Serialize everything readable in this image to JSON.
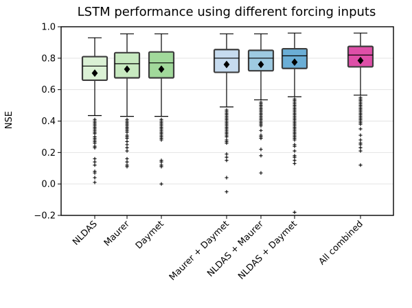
{
  "chart_data": {
    "type": "box",
    "title": "LSTM performance using different forcing inputs",
    "xlabel": "",
    "ylabel": "NSE",
    "ylim": [
      -0.2,
      1.0
    ],
    "yticks": [
      -0.2,
      0.0,
      0.2,
      0.4,
      0.6,
      0.8,
      1.0
    ],
    "ytick_labels": [
      "−0.2",
      "0.0",
      "0.2",
      "0.4",
      "0.6",
      "0.8",
      "1.0"
    ],
    "grid": "horizontal",
    "mean_marker": "diamond",
    "outlier_marker": "+",
    "boxes": [
      {
        "label": "NLDAS",
        "color": "#dbf1d5",
        "q1": 0.66,
        "median": 0.75,
        "q3": 0.81,
        "whisker_low": 0.435,
        "whisker_high": 0.93,
        "mean": 0.705,
        "outliers": [
          0.41,
          0.4,
          0.39,
          0.38,
          0.37,
          0.36,
          0.35,
          0.34,
          0.33,
          0.32,
          0.3,
          0.29,
          0.28,
          0.27,
          0.26,
          0.24,
          0.23,
          0.16,
          0.14,
          0.12,
          0.08,
          0.07,
          0.04,
          0.01
        ]
      },
      {
        "label": "Maurer",
        "color": "#c7e9c0",
        "q1": 0.675,
        "median": 0.765,
        "q3": 0.835,
        "whisker_low": 0.43,
        "whisker_high": 0.955,
        "mean": 0.73,
        "outliers": [
          0.41,
          0.4,
          0.39,
          0.38,
          0.37,
          0.36,
          0.35,
          0.34,
          0.33,
          0.31,
          0.3,
          0.29,
          0.27,
          0.25,
          0.23,
          0.21,
          0.16,
          0.14,
          0.12,
          0.11
        ]
      },
      {
        "label": "Daymet",
        "color": "#a1d99b",
        "q1": 0.675,
        "median": 0.77,
        "q3": 0.84,
        "whisker_low": 0.43,
        "whisker_high": 0.955,
        "mean": 0.73,
        "outliers": [
          0.41,
          0.4,
          0.39,
          0.38,
          0.37,
          0.36,
          0.35,
          0.34,
          0.33,
          0.32,
          0.31,
          0.3,
          0.29,
          0.28,
          0.15,
          0.14,
          0.12,
          0.11,
          0.0
        ]
      },
      {
        "label": "Maurer + Daymet",
        "color": "#c6dbef",
        "q1": 0.71,
        "median": 0.8,
        "q3": 0.855,
        "whisker_low": 0.49,
        "whisker_high": 0.955,
        "mean": 0.76,
        "outliers": [
          0.47,
          0.46,
          0.45,
          0.44,
          0.43,
          0.42,
          0.41,
          0.4,
          0.39,
          0.38,
          0.37,
          0.36,
          0.35,
          0.34,
          0.33,
          0.32,
          0.31,
          0.3,
          0.28,
          0.27,
          0.26,
          0.19,
          0.17,
          0.15,
          0.04,
          -0.05
        ]
      },
      {
        "label": "NLDAS + Maurer",
        "color": "#9ecae1",
        "q1": 0.72,
        "median": 0.8,
        "q3": 0.85,
        "whisker_low": 0.535,
        "whisker_high": 0.955,
        "mean": 0.76,
        "outliers": [
          0.52,
          0.51,
          0.5,
          0.49,
          0.48,
          0.47,
          0.46,
          0.45,
          0.44,
          0.43,
          0.42,
          0.41,
          0.4,
          0.39,
          0.38,
          0.37,
          0.34,
          0.31,
          0.3,
          0.29,
          0.22,
          0.18,
          0.07
        ]
      },
      {
        "label": "NLDAS + Daymet",
        "color": "#6baed6",
        "q1": 0.735,
        "median": 0.815,
        "q3": 0.86,
        "whisker_low": 0.555,
        "whisker_high": 0.96,
        "mean": 0.775,
        "outliers": [
          0.54,
          0.53,
          0.52,
          0.51,
          0.5,
          0.49,
          0.48,
          0.47,
          0.46,
          0.45,
          0.44,
          0.43,
          0.42,
          0.41,
          0.4,
          0.39,
          0.38,
          0.37,
          0.36,
          0.35,
          0.34,
          0.33,
          0.32,
          0.31,
          0.3,
          0.29,
          0.28,
          0.25,
          0.24,
          0.21,
          0.18,
          0.17,
          0.15,
          0.13,
          -0.18
        ]
      },
      {
        "label": "All combined",
        "color": "#de4fa8",
        "q1": 0.745,
        "median": 0.82,
        "q3": 0.875,
        "whisker_low": 0.565,
        "whisker_high": 0.96,
        "mean": 0.785,
        "outliers": [
          0.55,
          0.54,
          0.53,
          0.52,
          0.51,
          0.5,
          0.49,
          0.48,
          0.47,
          0.46,
          0.45,
          0.44,
          0.43,
          0.42,
          0.41,
          0.4,
          0.39,
          0.38,
          0.35,
          0.31,
          0.28,
          0.26,
          0.25,
          0.23,
          0.21,
          0.12
        ]
      }
    ]
  }
}
